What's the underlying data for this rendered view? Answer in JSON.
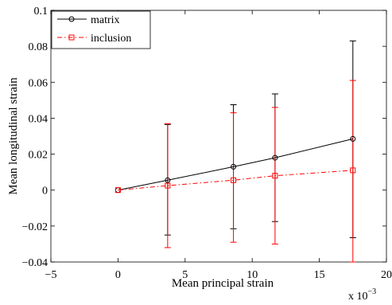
{
  "chart_data": {
    "type": "line",
    "title": "",
    "xlabel": "Mean principal strain",
    "ylabel": "Mean longitudinal strain",
    "x_multiplier": "x 10",
    "x_multiplier_exponent": "−3",
    "xlim": [
      -5,
      20
    ],
    "ylim": [
      -0.04,
      0.1
    ],
    "x_ticks": [
      -5,
      0,
      5,
      10,
      15,
      20
    ],
    "x_tick_labels": [
      "−5",
      "0",
      "5",
      "10",
      "15",
      "20"
    ],
    "y_ticks": [
      -0.04,
      -0.02,
      0,
      0.02,
      0.04,
      0.06,
      0.08,
      0.1
    ],
    "y_tick_labels": [
      "−0.04",
      "−0.02",
      "0",
      "0.02",
      "0.04",
      "0.06",
      "0.08",
      "0.1"
    ],
    "grid": false,
    "legend_position": "top-left",
    "series": [
      {
        "name": "matrix",
        "color": "#000000",
        "line_style": "solid",
        "marker": "circle",
        "x": [
          0,
          3.7,
          8.6,
          11.7,
          17.5
        ],
        "y": [
          0,
          0.0055,
          0.013,
          0.018,
          0.0285
        ],
        "err_low": [
          0,
          -0.025,
          -0.0215,
          -0.0175,
          -0.0265
        ],
        "err_high": [
          0,
          0.0365,
          0.0475,
          0.0535,
          0.083
        ]
      },
      {
        "name": "inclusion",
        "color": "#ff0000",
        "line_style": "dashdot",
        "marker": "square",
        "x": [
          0,
          3.7,
          8.6,
          11.7,
          17.5
        ],
        "y": [
          0,
          0.0025,
          0.0055,
          0.008,
          0.011
        ],
        "err_low": [
          0,
          -0.032,
          -0.029,
          -0.03,
          -0.04
        ],
        "err_high": [
          0,
          0.037,
          0.043,
          0.046,
          0.061
        ]
      }
    ]
  }
}
